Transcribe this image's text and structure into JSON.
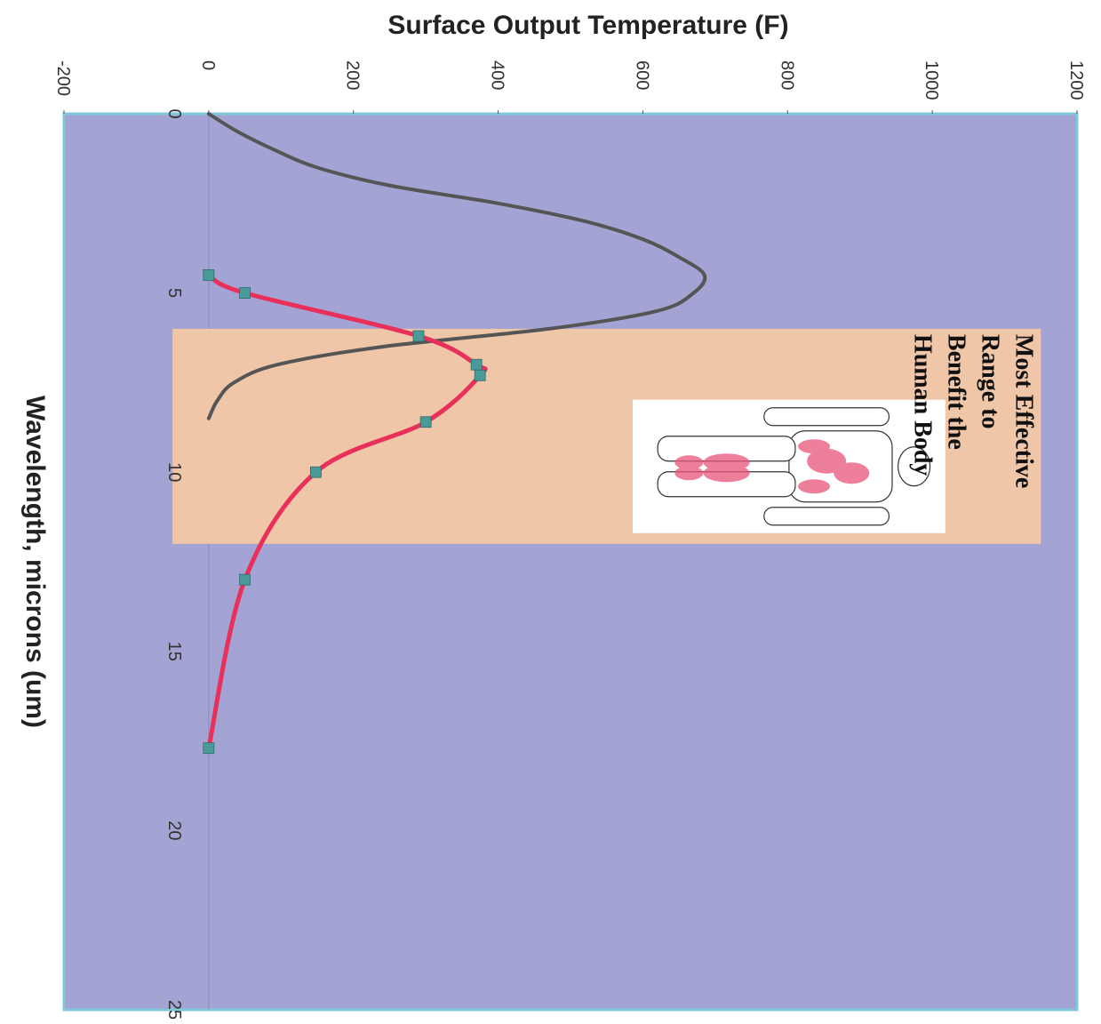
{
  "chart_data": {
    "type": "line",
    "ylabel": "Surface Output Temperature (F)",
    "xlabel": "Wavelength, microns (um)",
    "xlim": [
      0,
      25
    ],
    "ylim": [
      -200,
      1200
    ],
    "x_ticks": [
      0,
      5,
      10,
      15,
      20,
      25
    ],
    "y_ticks": [
      -200,
      0,
      200,
      400,
      600,
      800,
      1000,
      1200
    ],
    "grid": false,
    "orientation": "rotated 90 degrees clockwise",
    "plot_background": "#a4a4d4",
    "series": [
      {
        "color": "#555555",
        "markers": false,
        "x": [
          0,
          0.5,
          1,
          1.5,
          2,
          2.5,
          3,
          3.5,
          4,
          4.5,
          5,
          5.5,
          6,
          6.5,
          7,
          7.5,
          8,
          8.5
        ],
        "y": [
          0,
          40,
          90,
          150,
          250,
          400,
          520,
          600,
          650,
          685,
          670,
          620,
          470,
          240,
          95,
          35,
          12,
          0
        ]
      },
      {
        "color": "#e8305a",
        "markers": true,
        "marker_color": "#4a9a9a",
        "x": [
          4.5,
          5,
          6.2,
          7,
          7.3,
          8.6,
          10,
          13,
          17.7
        ],
        "y": [
          0,
          50,
          290,
          370,
          375,
          300,
          148,
          50,
          0
        ]
      }
    ],
    "annotations": [
      {
        "text_lines": [
          "Most Effective",
          "Range to",
          "Benefit the",
          "Human Body"
        ],
        "x_range": [
          6,
          12
        ],
        "y_range": [
          -50,
          1150
        ],
        "band_color": "#efc6a8",
        "image": "human-body-muscle-figure"
      }
    ]
  }
}
